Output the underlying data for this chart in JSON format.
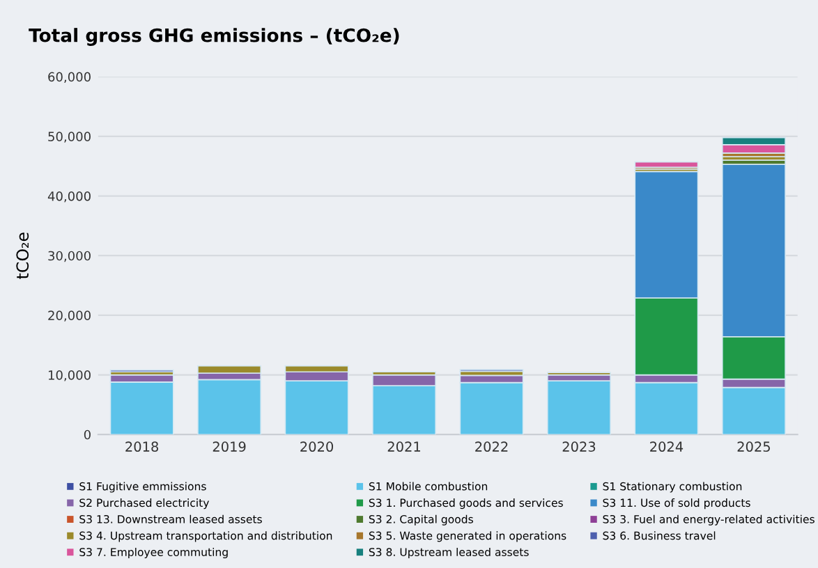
{
  "chart_data": {
    "type": "bar",
    "stacked": true,
    "title": "Total gross GHG emissions – (tCO₂e)",
    "ylabel": "tCO₂e",
    "categories": [
      "2018",
      "2019",
      "2020",
      "2021",
      "2022",
      "2023",
      "2024",
      "2025"
    ],
    "ylim": [
      0,
      60000
    ],
    "yticks": [
      {
        "value": 0,
        "label": "0"
      },
      {
        "value": 10000,
        "label": "10,000"
      },
      {
        "value": 20000,
        "label": "20,000"
      },
      {
        "value": 30000,
        "label": "30,000"
      },
      {
        "value": 40000,
        "label": "40,000"
      },
      {
        "value": 50000,
        "label": "50,000"
      },
      {
        "value": 60000,
        "label": "60,000"
      }
    ],
    "grid": "y",
    "legend": "bottom",
    "series": [
      {
        "name": "S1 Fugitive emmissions",
        "color": "#3d4fa3",
        "values": [
          null,
          null,
          null,
          null,
          null,
          null,
          null,
          null
        ]
      },
      {
        "name": "S1 Mobile combustion",
        "color": "#5bc3ea",
        "values": [
          8800,
          9200,
          9000,
          8200,
          8700,
          9000,
          8700,
          7900
        ]
      },
      {
        "name": "S1 Stationary combustion",
        "color": "#1a9a8f",
        "values": [
          null,
          null,
          null,
          null,
          null,
          null,
          null,
          null
        ]
      },
      {
        "name": "S2 Purchased electricity",
        "color": "#8665a9",
        "values": [
          1200,
          1100,
          1500,
          1800,
          1200,
          1000,
          1300,
          1400
        ]
      },
      {
        "name": "S3 1. Purchased goods and services",
        "color": "#1f9a48",
        "values": [
          null,
          null,
          null,
          null,
          null,
          null,
          12900,
          7100
        ]
      },
      {
        "name": "S3 11. Use of sold products",
        "color": "#3a89c9",
        "values": [
          null,
          null,
          null,
          null,
          null,
          null,
          21200,
          28900
        ]
      },
      {
        "name": "S3 13. Downstream leased assets",
        "color": "#c9542a",
        "values": [
          null,
          null,
          null,
          null,
          null,
          null,
          null,
          null
        ]
      },
      {
        "name": "S3 2. Capital goods",
        "color": "#4e7a2e",
        "values": [
          null,
          null,
          null,
          null,
          null,
          null,
          null,
          700
        ]
      },
      {
        "name": "S3 3. Fuel and energy-related activities",
        "color": "#8e3f96",
        "values": [
          null,
          null,
          null,
          null,
          null,
          null,
          null,
          null
        ]
      },
      {
        "name": "S3 4. Upstream transportation and distribution",
        "color": "#9b8a2b",
        "values": [
          500,
          1200,
          1000,
          500,
          700,
          400,
          400,
          600
        ]
      },
      {
        "name": "S3 5. Waste generated in operations",
        "color": "#a7772c",
        "values": [
          null,
          null,
          null,
          null,
          null,
          null,
          300,
          600
        ]
      },
      {
        "name": "S3 6. Business travel",
        "color": "#4d5fae",
        "values": [
          300,
          null,
          null,
          null,
          300,
          null,
          null,
          null
        ]
      },
      {
        "name": "S3 7. Employee commuting",
        "color": "#d9559b",
        "values": [
          null,
          null,
          null,
          null,
          null,
          null,
          900,
          1400
        ]
      },
      {
        "name": "S3 8. Upstream leased assets",
        "color": "#17807e",
        "values": [
          null,
          null,
          null,
          null,
          null,
          null,
          null,
          1200
        ]
      }
    ]
  }
}
